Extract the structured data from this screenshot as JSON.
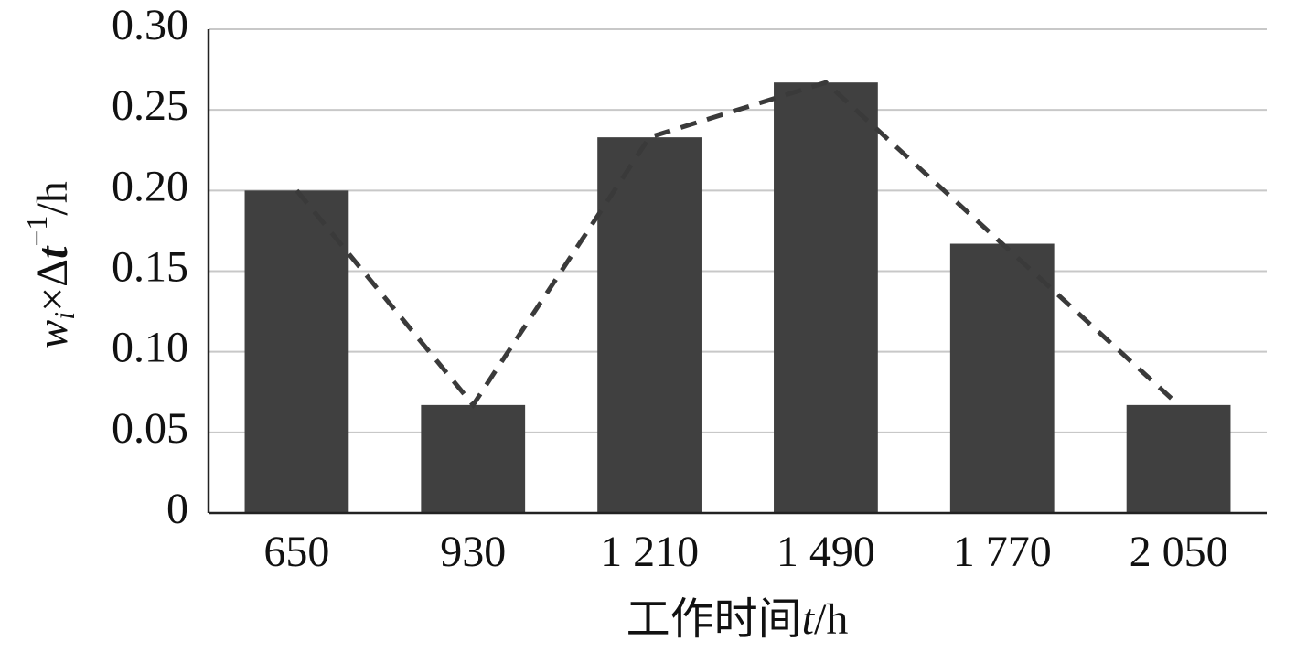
{
  "chart_data": {
    "type": "bar",
    "categories": [
      "650",
      "930",
      "1 210",
      "1 490",
      "1 770",
      "2 050"
    ],
    "values": [
      0.2,
      0.067,
      0.233,
      0.267,
      0.167,
      0.067
    ],
    "color": "#404040",
    "line_color": "#3a3a3a",
    "y_label_parts": [
      "w",
      "i",
      "×Δ",
      "t",
      "−1",
      "/h"
    ],
    "x_label_parts": [
      "工作时间",
      "t",
      "/h"
    ],
    "ylim": [
      0,
      0.3
    ],
    "yticks": [
      0,
      0.05,
      {
        "value": 0.1,
        "label": "0.10"
      },
      0.15,
      {
        "value": 0.2,
        "label": "0.20"
      },
      0.25,
      {
        "value": 0.3,
        "label": "0.30"
      }
    ],
    "grid": true
  }
}
